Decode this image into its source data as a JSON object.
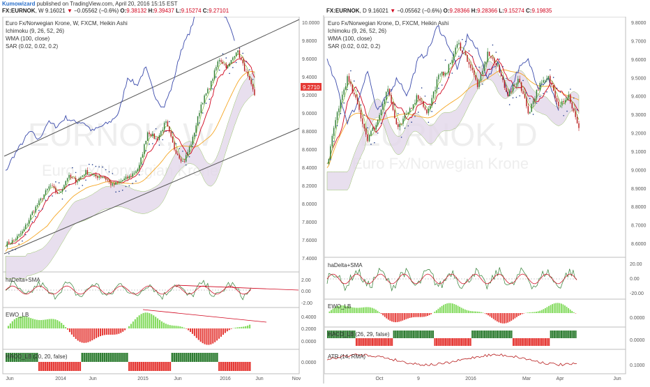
{
  "header": {
    "author": "Kumowizard",
    "published": "published on TradingView.com, April 20, 2016 15:15 EST"
  },
  "left_ticker": {
    "symbol": "FX:EURNOK",
    "tf": "W",
    "price": "9.16021",
    "change": "−0.05562 (−0.6%)",
    "open": "9.38132",
    "high": "9.39437",
    "low": "9.15274",
    "close": "9.27101"
  },
  "right_ticker": {
    "symbol": "FX:EURNOK",
    "tf": "D",
    "price": "9.16021",
    "change": "−0.05562 (−0.6%)",
    "open": "9.28366",
    "high": "9.28366",
    "low": "9.15274",
    "close": "9.19835"
  },
  "colors": {
    "up": "#2e7d32",
    "down": "#b71c1c",
    "wma": "#f5a623",
    "kijun": "#d0021b",
    "tenkan": "#8bc34a",
    "chikou": "#3949ab",
    "kumo": "#e3d8ea",
    "sar": "#1e3a8a",
    "green_hist": "#7ed957",
    "red_hist": "#e53935"
  },
  "chart_data": [
    {
      "type": "candlestick",
      "title": "Euro Fx/Norwegian Krone, W, FXCM, Heikin Ashi",
      "watermark": "EURNOK, W",
      "watermark_sub": "Euro Fx/Norwegian Krone",
      "indicators": [
        "Ichimoku (9, 26, 52, 26)",
        "WMA (100, close)",
        "SAR (0.02, 0.02, 0.2)"
      ],
      "price_label": "9.2710",
      "y_ticks": [
        "10.0000",
        "9.8000",
        "9.6000",
        "9.4000",
        "9.2000",
        "9.0000",
        "8.8000",
        "8.6000",
        "8.4000",
        "8.2000",
        "8.0000",
        "7.8000",
        "7.6000",
        "7.4000"
      ],
      "x_ticks": [
        "Jun",
        "2014",
        "Jun",
        "2015",
        "Jun",
        "2016",
        "Jun",
        "Nov"
      ],
      "ylim": [
        7.4,
        10.0
      ],
      "close_path": [
        7.55,
        7.6,
        7.7,
        7.9,
        8.05,
        8.2,
        8.1,
        8.3,
        8.25,
        8.35,
        8.3,
        8.3,
        8.2,
        8.25,
        8.3,
        8.4,
        8.8,
        8.7,
        8.9,
        8.6,
        8.45,
        8.7,
        9.1,
        9.3,
        9.6,
        9.5,
        9.7,
        9.45,
        9.2
      ],
      "subpanels": [
        {
          "name": "haDelta+SMA",
          "ticks": [
            "2.00",
            "0.00",
            "-2.00"
          ]
        },
        {
          "name": "EWO_LB",
          "ticks": [
            "0.4000",
            "0.2000",
            "0.0000"
          ]
        },
        {
          "name": "HACO_LB (20, 20, false)",
          "ticks": [
            "0.0000"
          ]
        }
      ]
    },
    {
      "type": "candlestick",
      "title": "Euro Fx/Norwegian Krone, D, FXCM, Heikin Ashi",
      "watermark": "EURNOK, D",
      "watermark_sub": "Euro Fx/Norwegian Krone",
      "indicators": [
        "Ichimoku (9, 26, 52, 26)",
        "WMA (100, close)",
        "SAR (0.02, 0.02, 0.2)"
      ],
      "y_ticks": [
        "9.8000",
        "9.7000",
        "9.6000",
        "9.5000",
        "9.4000",
        "9.3000",
        "9.2000",
        "9.1000",
        "9.0000",
        "8.9000",
        "8.8000",
        "8.7000",
        "8.6000"
      ],
      "x_ticks": [
        "Oct",
        "9",
        "2016",
        "Mar",
        "Apr",
        "Jun"
      ],
      "ylim": [
        8.55,
        9.82
      ],
      "close_path": [
        9.0,
        9.3,
        9.5,
        9.35,
        9.15,
        9.25,
        9.45,
        9.2,
        9.3,
        9.4,
        9.3,
        9.5,
        9.55,
        9.7,
        9.6,
        9.45,
        9.65,
        9.55,
        9.4,
        9.5,
        9.3,
        9.45,
        9.5,
        9.35,
        9.4,
        9.2
      ],
      "subpanels": [
        {
          "name": "haDelta+SMA",
          "ticks": [
            "20.00",
            "0.00",
            "-20.00"
          ]
        },
        {
          "name": "EWO_LB",
          "ticks": [
            "0.0000"
          ]
        },
        {
          "name": "HACO_LB (26, 29, false)",
          "ticks": [
            "0.0000"
          ]
        },
        {
          "name": "ATR (14, RMA)",
          "ticks": [
            "0.1000"
          ]
        }
      ]
    }
  ]
}
